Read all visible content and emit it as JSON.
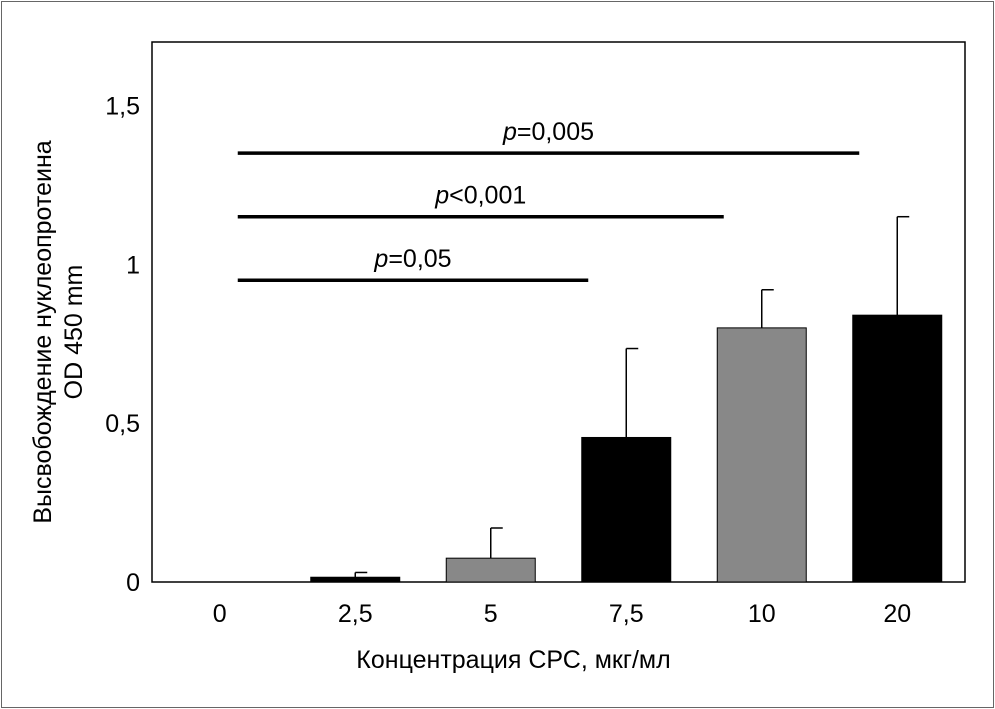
{
  "chart_data": {
    "type": "bar",
    "categories": [
      "0",
      "2,5",
      "5",
      "7,5",
      "10",
      "20"
    ],
    "values": [
      0,
      0.015,
      0.075,
      0.455,
      0.8,
      0.84
    ],
    "errors": [
      0,
      0.015,
      0.095,
      0.28,
      0.12,
      0.31
    ],
    "bar_colors": [
      "#000000",
      "#000000",
      "#888888",
      "#000000",
      "#888888",
      "#000000"
    ],
    "xlabel": "Концентрация СРС, мкг/мл",
    "ylabel_line1": "Высвобождение нуклеопротеина",
    "ylabel_line2": "OD 450 mm",
    "ylim": [
      0,
      1.7
    ],
    "yticks": [
      {
        "value": 0,
        "label": "0"
      },
      {
        "value": 0.5,
        "label": "0,5"
      },
      {
        "value": 1,
        "label": "1"
      },
      {
        "value": 1.5,
        "label": "1,5"
      }
    ],
    "grid": false,
    "significance": [
      {
        "from": 0,
        "to": 5,
        "level": 1.35,
        "p": "p",
        "rest": "=0,005"
      },
      {
        "from": 0,
        "to": 4,
        "level": 1.15,
        "p": "p",
        "rest": "<0,001"
      },
      {
        "from": 0,
        "to": 3,
        "level": 0.95,
        "p": "p",
        "rest": "=0,05"
      }
    ]
  }
}
